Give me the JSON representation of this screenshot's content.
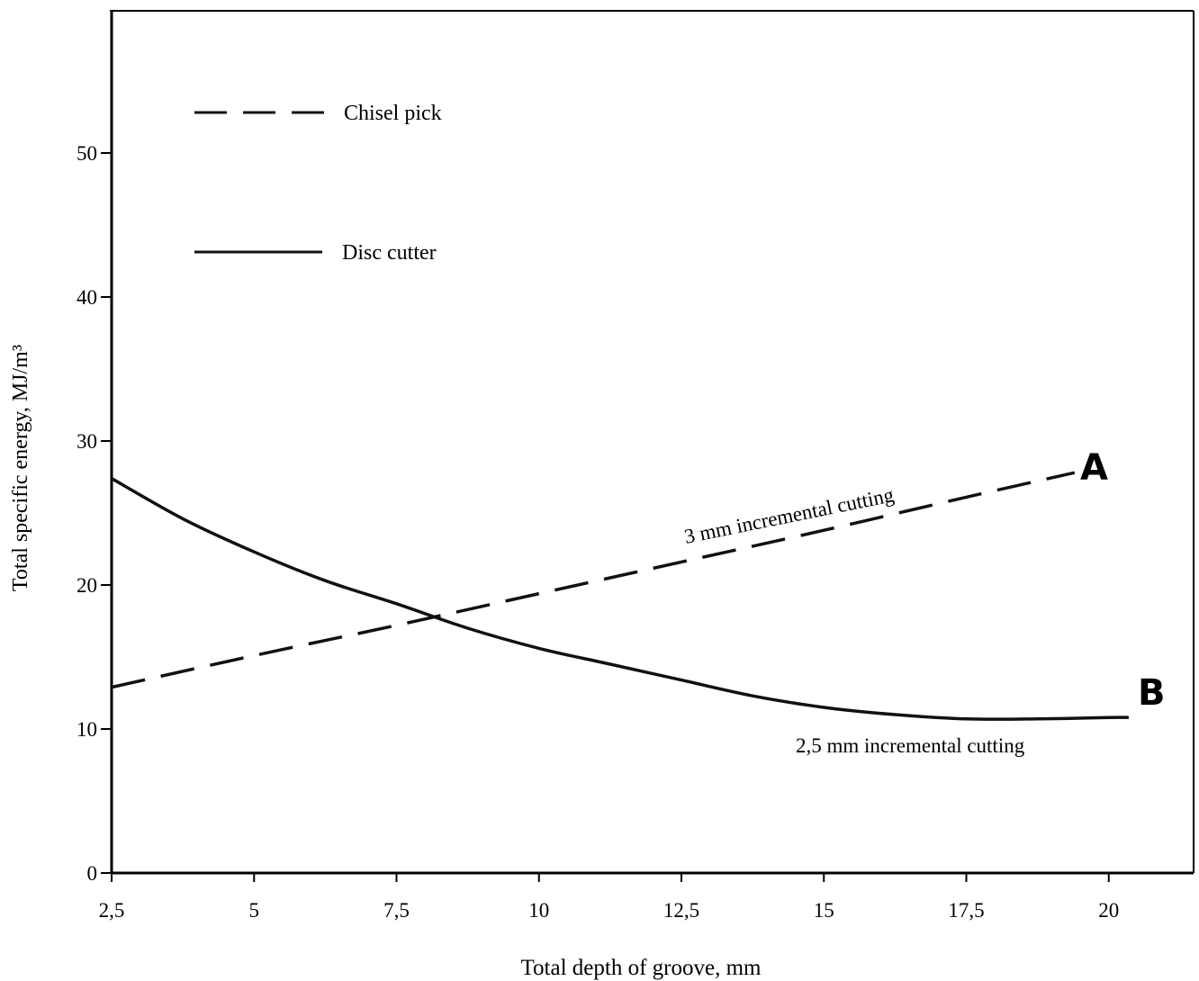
{
  "chart_data": {
    "type": "line",
    "title": "",
    "xlabel": "Total depth of groove, mm",
    "ylabel": "Total specific energy, MJ/m³",
    "xlim": [
      2.5,
      20.5
    ],
    "ylim": [
      0,
      55
    ],
    "x_ticks": [
      2.5,
      5,
      7.5,
      10,
      12.5,
      15,
      17.5,
      20
    ],
    "x_tick_labels": [
      "2,5",
      "5",
      "7,5",
      "10",
      "12,5",
      "15",
      "17,5",
      "20"
    ],
    "y_ticks": [
      0,
      10,
      20,
      30,
      40,
      50
    ],
    "y_tick_labels": [
      "0",
      "10",
      "20",
      "30",
      "40",
      "50"
    ],
    "grid": false,
    "legend_position": "top-left",
    "series": [
      {
        "name": "Chisel pick",
        "style": "dashed",
        "color": "#111111",
        "curve_label": "A",
        "annotation": "3 mm  incremental cutting",
        "x": [
          2.5,
          5,
          7.5,
          10,
          12.5,
          15,
          17.5,
          19.4
        ],
        "y": [
          12.9,
          15.1,
          17.2,
          19.4,
          21.6,
          23.8,
          26.1,
          27.8
        ]
      },
      {
        "name": "Disc cutter",
        "style": "solid",
        "color": "#111111",
        "curve_label": "B",
        "annotation": "2,5 mm  incremental cutting",
        "x": [
          2.5,
          3.75,
          5,
          6.25,
          7.5,
          8.75,
          10,
          11.25,
          12.5,
          13.75,
          15,
          16.25,
          17.5,
          18.75,
          20,
          20.35
        ],
        "y": [
          27.4,
          24.6,
          22.3,
          20.3,
          18.7,
          17.0,
          15.6,
          14.5,
          13.4,
          12.3,
          11.5,
          11.0,
          10.7,
          10.7,
          10.8,
          10.8
        ]
      }
    ]
  }
}
